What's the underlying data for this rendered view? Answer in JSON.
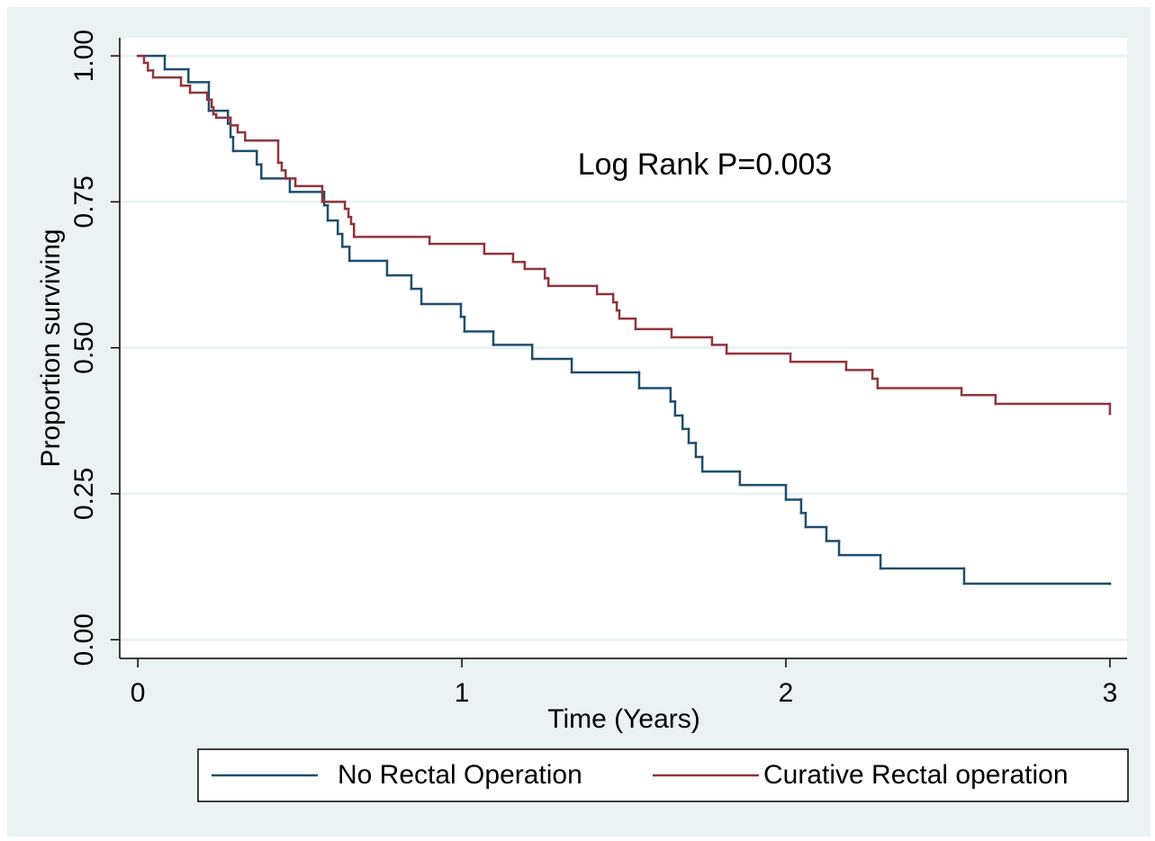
{
  "chart_data": {
    "type": "line",
    "step": true,
    "xlabel": "Time (Years)",
    "ylabel": "Proportion surviving",
    "annotation": "Log Rank P=0.003",
    "xlim": [
      -0.056,
      3.053
    ],
    "ylim": [
      -0.032,
      1.031
    ],
    "xticks": [
      0,
      1,
      2,
      3
    ],
    "yticks": [
      {
        "value": 0,
        "label": "0.00"
      },
      {
        "value": 0.25,
        "label": "0.25"
      },
      {
        "value": 0.5,
        "label": "0.50"
      },
      {
        "value": 0.75,
        "label": "0.75"
      },
      {
        "value": 1,
        "label": "1.00"
      }
    ],
    "grid": true,
    "legend": "bottom",
    "series": [
      {
        "name": "No Rectal Operation",
        "color": "#1f4e6e",
        "x": [
          0,
          0.083,
          0.156,
          0.219,
          0.278,
          0.286,
          0.294,
          0.367,
          0.381,
          0.469,
          0.575,
          0.586,
          0.617,
          0.631,
          0.653,
          0.769,
          0.844,
          0.875,
          0.997,
          1.008,
          1.097,
          1.217,
          1.339,
          1.547,
          1.644,
          1.658,
          1.681,
          1.7,
          1.722,
          1.742,
          1.858,
          2.0,
          2.047,
          2.061,
          2.125,
          2.164,
          2.292,
          2.55,
          3.0
        ],
        "values": [
          1,
          0.977,
          0.955,
          0.906,
          0.884,
          0.861,
          0.837,
          0.814,
          0.79,
          0.767,
          0.744,
          0.718,
          0.695,
          0.673,
          0.649,
          0.624,
          0.601,
          0.575,
          0.553,
          0.528,
          0.505,
          0.481,
          0.458,
          0.431,
          0.408,
          0.384,
          0.361,
          0.337,
          0.313,
          0.288,
          0.265,
          0.24,
          0.217,
          0.193,
          0.169,
          0.145,
          0.122,
          0.096,
          0.096
        ]
      },
      {
        "name": "Curative Rectal operation",
        "color": "#90353b",
        "x": [
          0,
          0.019,
          0.031,
          0.047,
          0.133,
          0.161,
          0.214,
          0.228,
          0.233,
          0.242,
          0.286,
          0.308,
          0.331,
          0.433,
          0.444,
          0.456,
          0.486,
          0.569,
          0.639,
          0.65,
          0.658,
          0.667,
          0.9,
          1.069,
          1.158,
          1.194,
          1.256,
          1.267,
          1.417,
          1.467,
          1.478,
          1.486,
          1.536,
          1.647,
          1.772,
          1.817,
          2.014,
          2.186,
          2.267,
          2.283,
          2.542,
          2.647,
          3.0
        ],
        "values": [
          1,
          0.988,
          0.975,
          0.963,
          0.949,
          0.937,
          0.925,
          0.912,
          0.9,
          0.894,
          0.881,
          0.869,
          0.855,
          0.817,
          0.804,
          0.79,
          0.777,
          0.75,
          0.738,
          0.724,
          0.712,
          0.69,
          0.678,
          0.661,
          0.647,
          0.635,
          0.619,
          0.606,
          0.592,
          0.578,
          0.564,
          0.55,
          0.532,
          0.518,
          0.505,
          0.49,
          0.476,
          0.462,
          0.447,
          0.431,
          0.419,
          0.404,
          0.387
        ]
      }
    ]
  }
}
